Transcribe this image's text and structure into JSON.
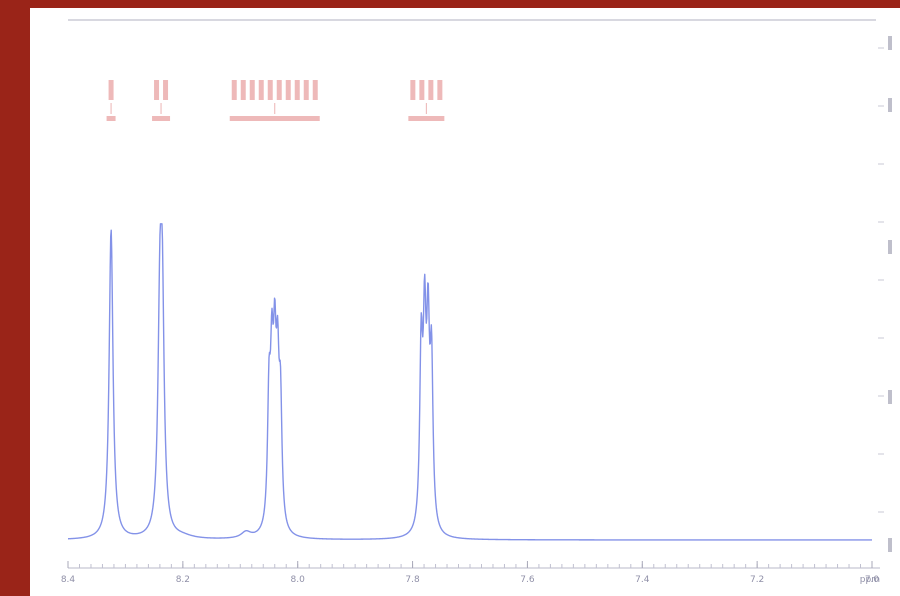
{
  "chart_data": {
    "type": "line",
    "title": "",
    "xlabel": "ppm",
    "ylabel": "",
    "x_reversed": true,
    "xlim": [
      8.4,
      7.0
    ],
    "ylim": [
      0,
      1.0
    ],
    "grid": false,
    "legend": "none",
    "x_ticks": [
      "8.4",
      "8.2",
      "8.0",
      "7.8",
      "7.6",
      "7.4",
      "7.2",
      "7.0"
    ],
    "series": [
      {
        "color": "#5a6ee0",
        "peaks": [
          {
            "ppm": 8.325,
            "height": 1.0,
            "width": 0.004
          },
          {
            "ppm": 8.236,
            "height": 0.7,
            "width": 0.004
          },
          {
            "ppm": 8.24,
            "height": 0.62,
            "width": 0.004
          },
          {
            "ppm": 8.05,
            "height": 0.4,
            "width": 0.003
          },
          {
            "ppm": 8.045,
            "height": 0.46,
            "width": 0.003
          },
          {
            "ppm": 8.04,
            "height": 0.48,
            "width": 0.003
          },
          {
            "ppm": 8.035,
            "height": 0.44,
            "width": 0.003
          },
          {
            "ppm": 8.03,
            "height": 0.38,
            "width": 0.003
          },
          {
            "ppm": 8.09,
            "height": 0.02,
            "width": 0.01
          },
          {
            "ppm": 7.785,
            "height": 0.56,
            "width": 0.003
          },
          {
            "ppm": 7.779,
            "height": 0.6,
            "width": 0.003
          },
          {
            "ppm": 7.773,
            "height": 0.58,
            "width": 0.003
          },
          {
            "ppm": 7.767,
            "height": 0.52,
            "width": 0.003
          },
          {
            "ppm": 8.2,
            "height": 0.008,
            "width": 0.02
          }
        ]
      }
    ]
  },
  "annotations": {
    "color": "#e08080"
  }
}
